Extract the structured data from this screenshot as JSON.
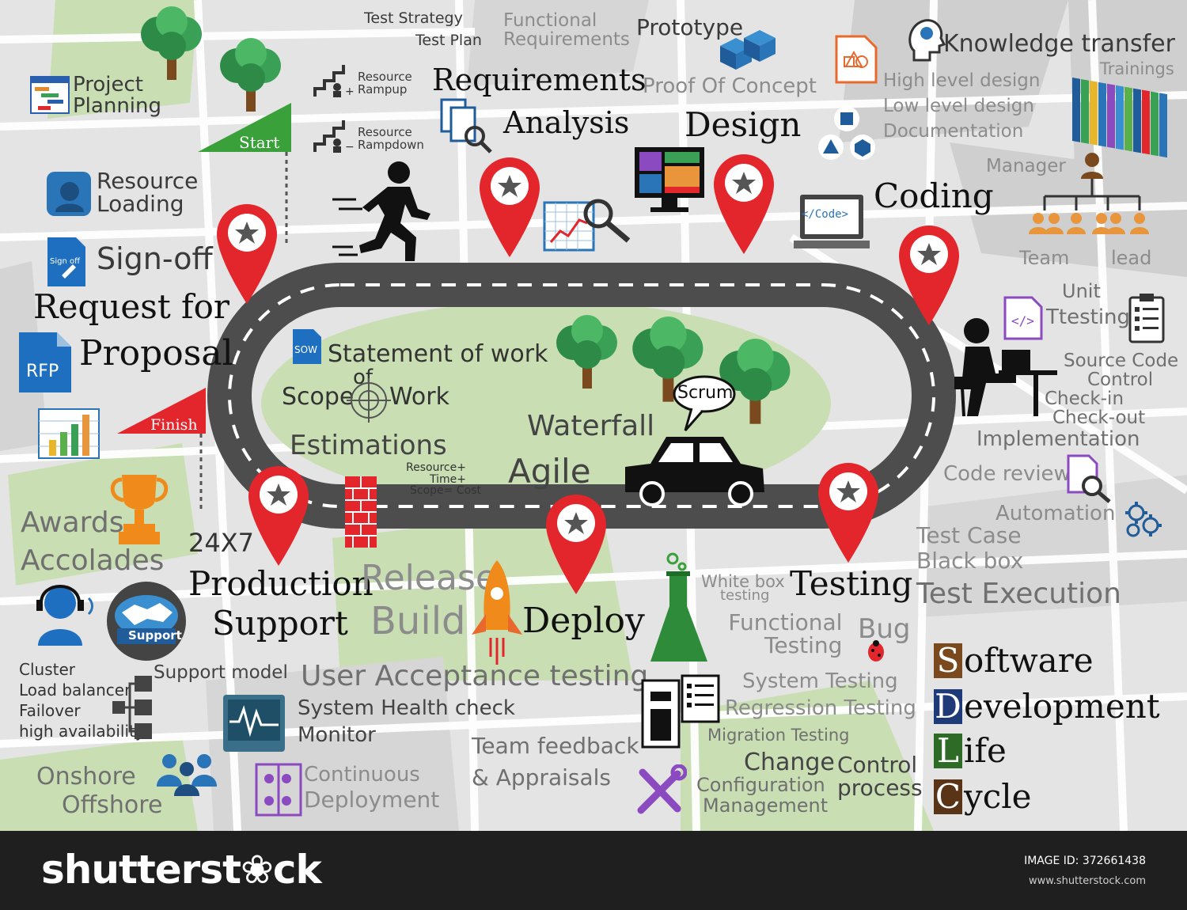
{
  "labels": {
    "test_strategy": "Test Strategy",
    "test_plan": "Test Plan",
    "functional": "Functional",
    "requirements_small": "Requirements",
    "prototype": "Prototype",
    "knowledge_transfer": "Knowledge transfer",
    "trainings": "Trainings",
    "project": "Project",
    "planning": "Planning",
    "resource_rampup_1": "Resource",
    "resource_rampup_2": "Rampup",
    "requirements": "Requirements",
    "analysis": "Analysis",
    "proof_of_concept": "Proof Of Concept",
    "high_level_design": "High level design",
    "low_level_design": "Low level design",
    "documentation": "Documentation",
    "design": "Design",
    "resource_rampdown_1": "Resource",
    "resource_rampdown_2": "Rampdown",
    "start": "Start",
    "manager": "Manager",
    "resource_loading_1": "Resource",
    "resource_loading_2": "Loading",
    "coding": "Coding",
    "team": "Team",
    "lead": "lead",
    "sign_off": "Sign-off",
    "sign_off_icon": "Sign off",
    "request_for": "Request for",
    "proposal": "Proposal",
    "rfp": "RFP",
    "unit": "Unit",
    "ttesting": "Ttesting",
    "statement_of_work": "Statement of work",
    "sow": "SOW",
    "of": "of",
    "scope": "Scope",
    "work": "Work",
    "source_code": "Source Code",
    "control": "Control",
    "check_in": "Check-in",
    "check_out": "Check-out",
    "implementation": "Implementation",
    "scrum": "Scrum",
    "waterfall": "Waterfall",
    "finish": "Finish",
    "estimations": "Estimations",
    "resource_plus": "Resource+",
    "time_plus": "Time+",
    "scope_cost": "Scope= Cost",
    "agile": "Agile",
    "code_review": "Code review",
    "automation": "Automation",
    "awards": "Awards",
    "accolades": "Accolades",
    "twentyfour": "24X7",
    "test_case": "Test Case",
    "black_box": "Black box",
    "production": "Production",
    "support": "Support",
    "release": "Release",
    "build": "Build",
    "deploy": "Deploy",
    "white_box": "White box",
    "testing_small": "testing",
    "testing": "Testing",
    "test_execution": "Test Execution",
    "support_badge": "Support",
    "functional_testing_1": "Functional",
    "functional_testing_2": "Testing",
    "bug": "Bug",
    "cluster": "Cluster",
    "load_balancer": "Load balancer",
    "failover": "Failover",
    "high_availability": "high availability",
    "support_model": "Support model",
    "user_acceptance": "User Acceptance testing",
    "system_testing": "System Testing",
    "regression_testing": "Regression Testing",
    "system_health": "System Health check",
    "monitor": "Monitor",
    "migration_testing": "Migration Testing",
    "team_feedback": "Team feedback",
    "appraisals": "& Appraisals",
    "change": "Change",
    "control_big": "Control",
    "process": "process",
    "configuration": "Configuration",
    "management": "Management",
    "onshore": "Onshore",
    "offshore": "Offshore",
    "continuous": "Continuous",
    "deployment": "Deployment",
    "code_icon": "</Code>",
    "html_icon": "</>"
  },
  "sdlc": [
    {
      "cap": "S",
      "rest": "oftware",
      "color": "#7a4a1e"
    },
    {
      "cap": "D",
      "rest": "evelopment",
      "color": "#1f3a78"
    },
    {
      "cap": "L",
      "rest": "ife",
      "color": "#2e6b26"
    },
    {
      "cap": "C",
      "rest": "ycle",
      "color": "#5a3417"
    }
  ],
  "footer": {
    "brand": "shutterst❀ck",
    "image_id": "IMAGE ID: 372661438",
    "url": "www.shutterstock.com"
  },
  "colors": {
    "pin": "#e3262b",
    "road": "#4d4d4d",
    "park": "#c7ddb1",
    "block": "#d2d2d2"
  }
}
